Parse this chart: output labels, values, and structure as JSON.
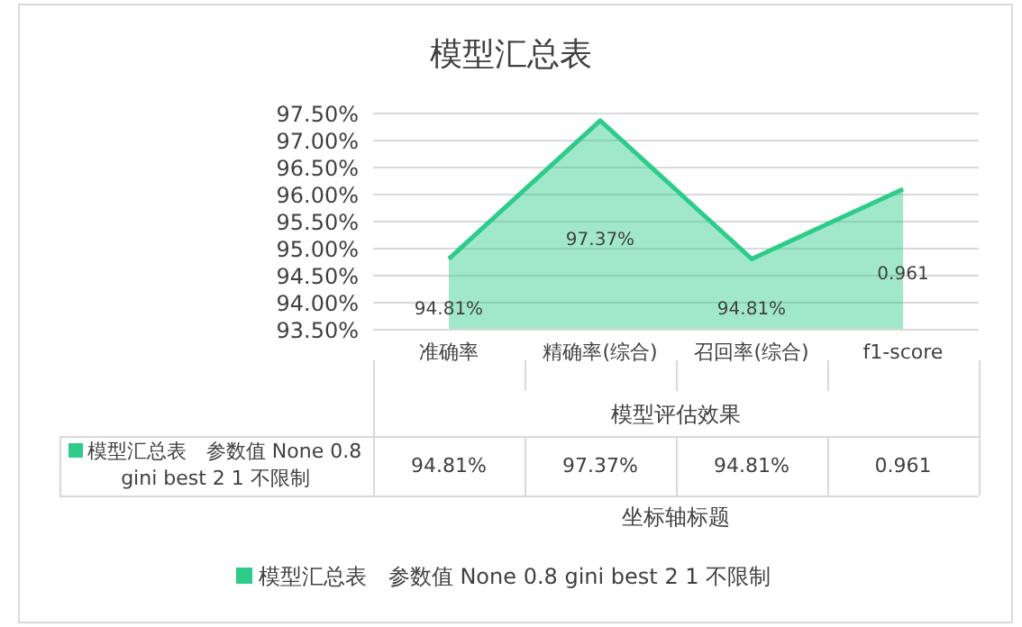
{
  "chart_data": {
    "type": "area",
    "title": "模型汇总表",
    "xlabel": "模型评估效果",
    "annotations": [
      "坐标轴标题"
    ],
    "categories": [
      "准确率",
      "精确率(综合)",
      "召回率(综合)",
      "f1-score"
    ],
    "series": [
      {
        "name": "模型汇总表　参数值 None 0.8 gini best 2 1 不限制",
        "color": "#2ecc8a",
        "values": [
          0.9481,
          0.9737,
          0.9481,
          0.961
        ],
        "value_labels": [
          "94.81%",
          "97.37%",
          "94.81%",
          "0.961"
        ]
      }
    ],
    "ylim": [
      0.935,
      0.975
    ],
    "yticks": [
      {
        "value": 0.935,
        "label": "93.50%"
      },
      {
        "value": 0.94,
        "label": "94.00%"
      },
      {
        "value": 0.945,
        "label": "94.50%"
      },
      {
        "value": 0.95,
        "label": "95.00%"
      },
      {
        "value": 0.955,
        "label": "95.50%"
      },
      {
        "value": 0.96,
        "label": "96.00%"
      },
      {
        "value": 0.965,
        "label": "96.50%"
      },
      {
        "value": 0.97,
        "label": "97.00%"
      },
      {
        "value": 0.975,
        "label": "97.50%"
      }
    ],
    "grid": "y",
    "legend": "bottom"
  }
}
